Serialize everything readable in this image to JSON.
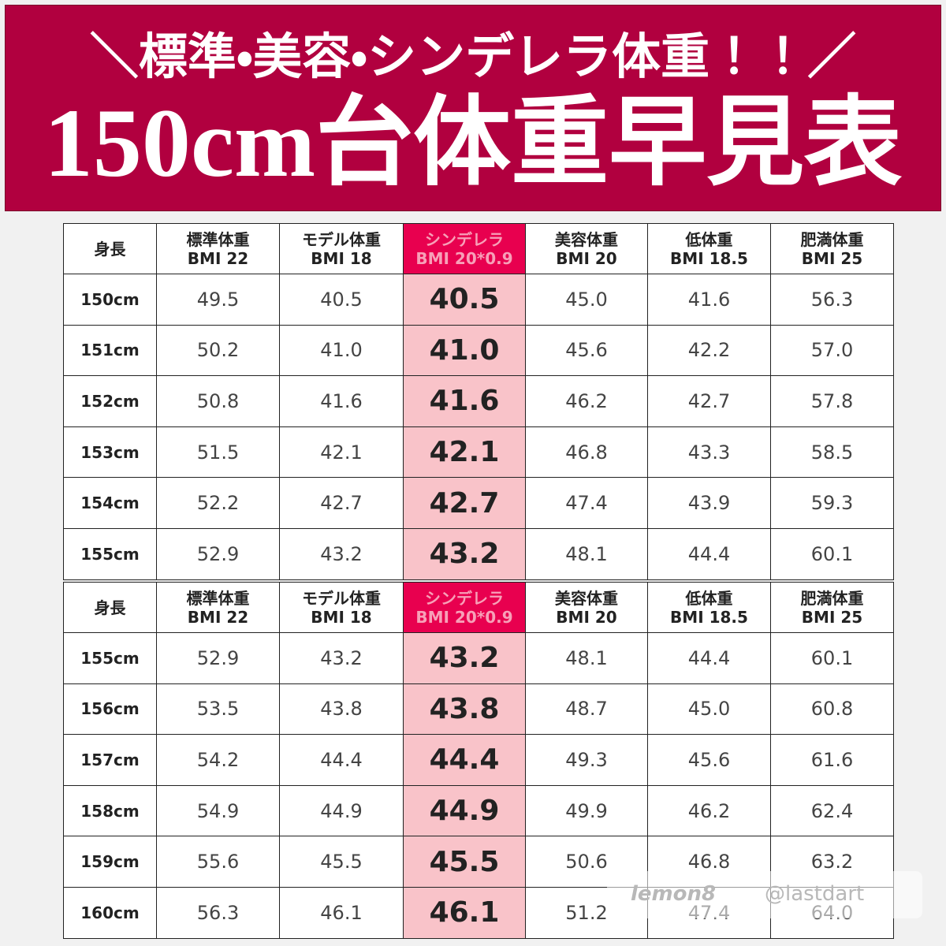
{
  "header": {
    "title_line1": "＼標準・美容・シンデレラ体重！！／",
    "title_line2": "150cm台体重早見表"
  },
  "tables": [
    {
      "header": [
        [
          "身長"
        ],
        [
          "標準体重",
          "BMI 22"
        ],
        [
          "モデル体重",
          "BMI 18"
        ],
        [
          "シンデレラ",
          "BMI 20*0.9"
        ],
        [
          "美容体重",
          "BMI 20"
        ],
        [
          "低体重",
          "BMI 18.5"
        ],
        [
          "肥満体重",
          "BMI 25"
        ]
      ],
      "rows": [
        [
          "150cm",
          "49.5",
          "40.5",
          "40.5",
          "45.0",
          "41.6",
          "56.3"
        ],
        [
          "151cm",
          "50.2",
          "41.0",
          "41.0",
          "45.6",
          "42.2",
          "57.0"
        ],
        [
          "152cm",
          "50.8",
          "41.6",
          "41.6",
          "46.2",
          "42.7",
          "57.8"
        ],
        [
          "153cm",
          "51.5",
          "42.1",
          "42.1",
          "46.8",
          "43.3",
          "58.5"
        ],
        [
          "154cm",
          "52.2",
          "42.7",
          "42.7",
          "47.4",
          "43.9",
          "59.3"
        ],
        [
          "155cm",
          "52.9",
          "43.2",
          "43.2",
          "48.1",
          "44.4",
          "60.1"
        ]
      ]
    },
    {
      "header": [
        [
          "身長"
        ],
        [
          "標準体重",
          "BMI 22"
        ],
        [
          "モデル体重",
          "BMI 18"
        ],
        [
          "シンデレラ",
          "BMI 20*0.9"
        ],
        [
          "美容体重",
          "BMI 20"
        ],
        [
          "低体重",
          "BMI 18.5"
        ],
        [
          "肥満体重",
          "BMI 25"
        ]
      ],
      "rows": [
        [
          "155cm",
          "52.9",
          "43.2",
          "43.2",
          "48.1",
          "44.4",
          "60.1"
        ],
        [
          "156cm",
          "53.5",
          "43.8",
          "43.8",
          "48.7",
          "45.0",
          "60.8"
        ],
        [
          "157cm",
          "54.2",
          "44.4",
          "44.4",
          "49.3",
          "45.6",
          "61.6"
        ],
        [
          "158cm",
          "54.9",
          "44.9",
          "44.9",
          "49.9",
          "46.2",
          "62.4"
        ],
        [
          "159cm",
          "55.6",
          "45.5",
          "45.5",
          "50.6",
          "46.8",
          "63.2"
        ],
        [
          "160cm",
          "56.3",
          "46.1",
          "46.1",
          "51.2",
          "47.4",
          "64.0"
        ]
      ]
    }
  ],
  "watermark": {
    "app": "lemon8",
    "user": "@lastdart"
  }
}
